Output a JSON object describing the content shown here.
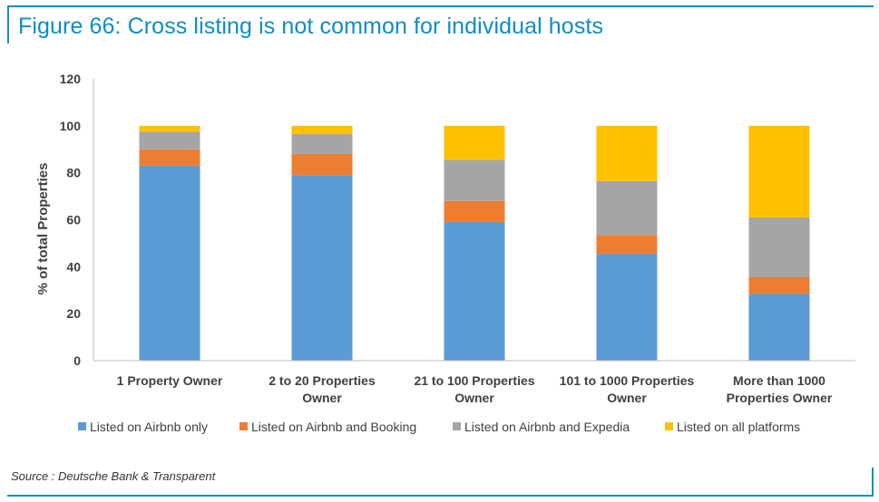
{
  "header": {
    "title": "Figure 66: Cross listing is not common for individual hosts"
  },
  "footer": {
    "source": "Source : Deutsche Bank & Transparent"
  },
  "colors": {
    "accent": "#0b8ec6"
  },
  "chart_data": {
    "type": "bar",
    "stacked": true,
    "title": "Figure 66: Cross listing is not common for individual hosts",
    "xlabel": "",
    "ylabel": "% of total Properties",
    "ylim": [
      0,
      120
    ],
    "yticks": [
      0,
      20,
      40,
      60,
      80,
      100,
      120
    ],
    "categories": [
      [
        "1 Property Owner"
      ],
      [
        "2 to 20 Properties",
        "Owner"
      ],
      [
        "21 to 100 Properties",
        "Owner"
      ],
      [
        "101 to 1000 Properties",
        "Owner"
      ],
      [
        "More than 1000",
        "Properties Owner"
      ]
    ],
    "series": [
      {
        "name": "Listed on Airbnb only",
        "color": "#5b9bd5",
        "values": [
          83,
          79,
          59,
          45.5,
          28.5
        ]
      },
      {
        "name": "Listed on Airbnb and Booking",
        "color": "#ed7d31",
        "values": [
          7,
          9,
          9,
          8,
          7
        ]
      },
      {
        "name": "Listed on Airbnb and Expedia",
        "color": "#a5a5a5",
        "values": [
          7.5,
          8.5,
          17.5,
          23,
          25.5
        ]
      },
      {
        "name": "Listed on all platforms",
        "color": "#ffc000",
        "values": [
          2.5,
          3.5,
          14.5,
          23.5,
          39
        ]
      }
    ],
    "legend": "bottom",
    "grid": false
  }
}
